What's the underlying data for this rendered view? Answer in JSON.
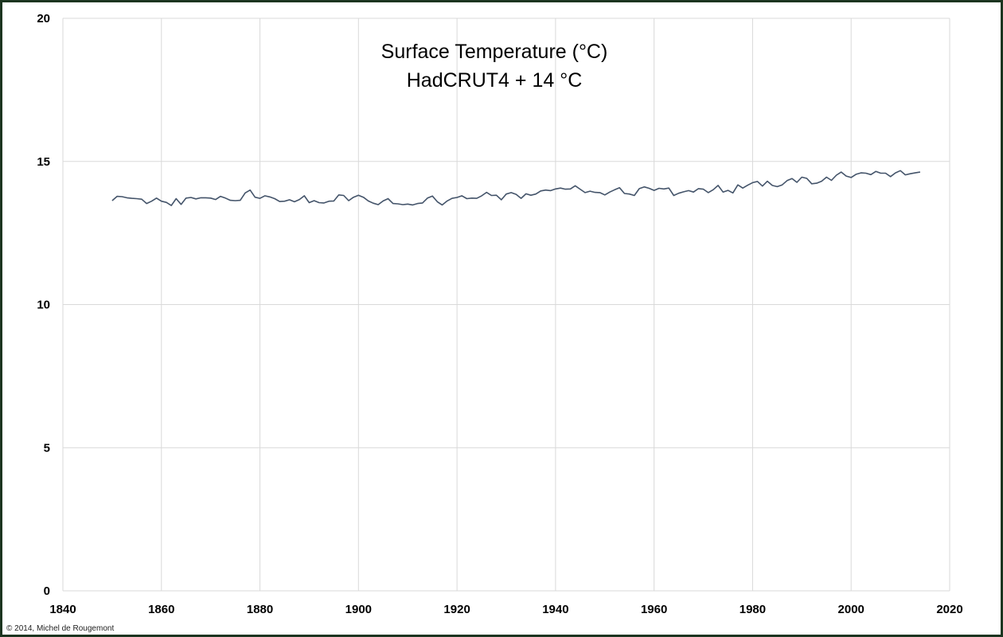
{
  "chart_data": {
    "type": "line",
    "title": "Surface Temperature  (°C)",
    "subtitle": "HadCRUT4 + 14 °C",
    "xlabel": "",
    "ylabel": "",
    "xlim": [
      1840,
      2020
    ],
    "ylim": [
      0,
      20
    ],
    "xticks": [
      1840,
      1860,
      1880,
      1900,
      1920,
      1940,
      1960,
      1980,
      2000,
      2020
    ],
    "yticks": [
      0,
      5,
      10,
      15,
      20
    ],
    "grid": true,
    "legend": "none",
    "line_color": "#44546a",
    "series": [
      {
        "name": "HadCRUT4 + 14 °C",
        "x_start": 1850,
        "x_step": 1,
        "offset": 14,
        "anomalies": [
          -0.37,
          -0.22,
          -0.23,
          -0.27,
          -0.29,
          -0.3,
          -0.32,
          -0.47,
          -0.39,
          -0.28,
          -0.39,
          -0.43,
          -0.54,
          -0.3,
          -0.5,
          -0.28,
          -0.26,
          -0.31,
          -0.27,
          -0.27,
          -0.28,
          -0.33,
          -0.22,
          -0.28,
          -0.36,
          -0.37,
          -0.36,
          -0.1,
          0.0,
          -0.25,
          -0.29,
          -0.2,
          -0.24,
          -0.3,
          -0.4,
          -0.39,
          -0.34,
          -0.41,
          -0.33,
          -0.2,
          -0.44,
          -0.37,
          -0.44,
          -0.45,
          -0.39,
          -0.38,
          -0.17,
          -0.19,
          -0.37,
          -0.25,
          -0.18,
          -0.25,
          -0.38,
          -0.46,
          -0.51,
          -0.38,
          -0.3,
          -0.47,
          -0.48,
          -0.51,
          -0.49,
          -0.52,
          -0.47,
          -0.45,
          -0.28,
          -0.21,
          -0.41,
          -0.52,
          -0.38,
          -0.29,
          -0.26,
          -0.2,
          -0.3,
          -0.28,
          -0.29,
          -0.2,
          -0.08,
          -0.19,
          -0.18,
          -0.34,
          -0.14,
          -0.09,
          -0.15,
          -0.29,
          -0.13,
          -0.18,
          -0.14,
          -0.03,
          0.0,
          -0.02,
          0.04,
          0.07,
          0.03,
          0.04,
          0.15,
          0.03,
          -0.09,
          -0.04,
          -0.08,
          -0.09,
          -0.17,
          -0.07,
          0.01,
          0.08,
          -0.12,
          -0.14,
          -0.19,
          0.05,
          0.11,
          0.06,
          -0.01,
          0.06,
          0.04,
          0.07,
          -0.19,
          -0.11,
          -0.06,
          -0.02,
          -0.07,
          0.05,
          0.03,
          -0.09,
          0.01,
          0.16,
          -0.07,
          -0.01,
          -0.1,
          0.18,
          0.07,
          0.17,
          0.26,
          0.3,
          0.14,
          0.31,
          0.16,
          0.12,
          0.18,
          0.33,
          0.4,
          0.27,
          0.45,
          0.41,
          0.22,
          0.24,
          0.31,
          0.45,
          0.34,
          0.52,
          0.63,
          0.49,
          0.44,
          0.55,
          0.6,
          0.59,
          0.54,
          0.65,
          0.59,
          0.59,
          0.47,
          0.6,
          0.68,
          0.53,
          0.57,
          0.6,
          0.63
        ]
      }
    ]
  },
  "copyright": "© 2014, Michel de Rougemont"
}
